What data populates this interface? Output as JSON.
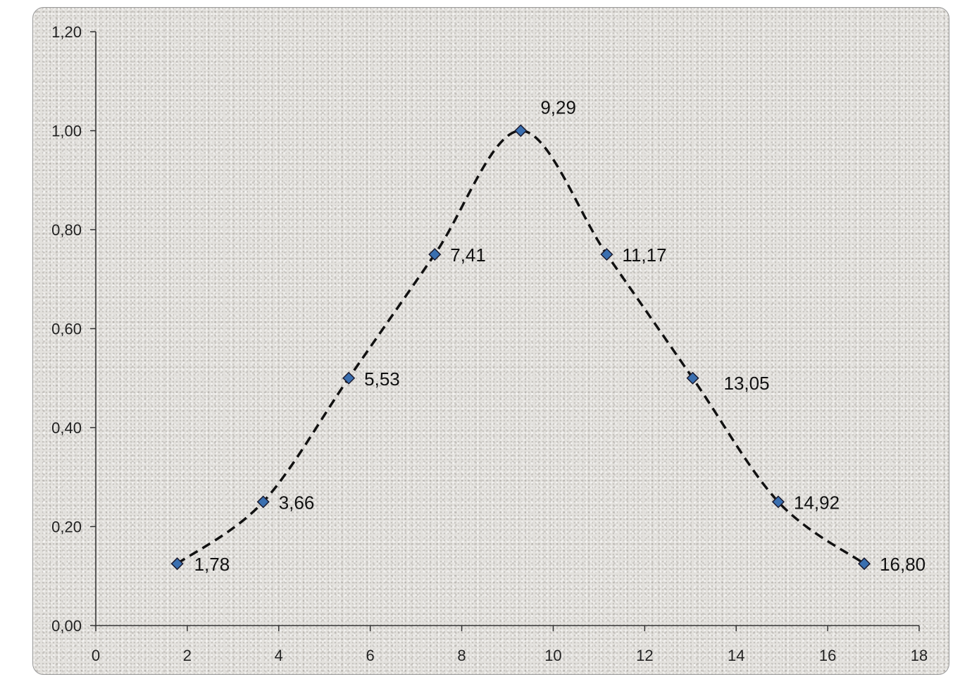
{
  "chart_data": {
    "type": "line",
    "x": [
      1.78,
      3.66,
      5.53,
      7.41,
      9.29,
      11.17,
      13.05,
      14.92,
      16.8
    ],
    "series": [
      {
        "values": [
          0.125,
          0.25,
          0.5,
          0.75,
          1.0,
          0.75,
          0.5,
          0.25,
          0.125
        ]
      }
    ],
    "data_labels": [
      "1,78",
      "3,66",
      "5,53",
      "7,41",
      "9,29",
      "11,17",
      "13,05",
      "14,92",
      "16,80"
    ],
    "xlim": [
      0,
      18
    ],
    "ylim": [
      0,
      1.2
    ],
    "x_ticks": [
      0,
      2,
      4,
      6,
      8,
      10,
      12,
      14,
      16,
      18
    ],
    "x_tick_labels": [
      "0",
      "2",
      "4",
      "6",
      "8",
      "10",
      "12",
      "14",
      "16",
      "18"
    ],
    "y_ticks": [
      0,
      0.2,
      0.4,
      0.6,
      0.8,
      1.0,
      1.2
    ],
    "y_tick_labels": [
      "0,00",
      "0,20",
      "0,40",
      "0,60",
      "0,80",
      "1,00",
      "1,20"
    ],
    "line_style": "dashed smoothed",
    "marker": "diamond",
    "grid": false,
    "legend": "none",
    "colors": {
      "line": "#111111",
      "marker": "#3a6fb0",
      "axis": "#333333"
    }
  }
}
